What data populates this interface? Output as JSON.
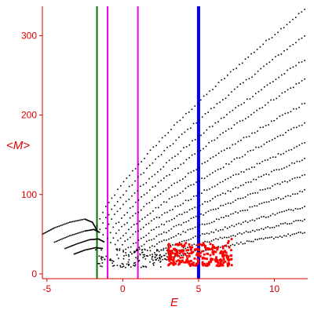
{
  "chart_data": {
    "type": "scatter",
    "xlabel": "E",
    "ylabel": "<M>",
    "xlim": [
      -5.3,
      12.2
    ],
    "ylim": [
      -6,
      337
    ],
    "x_ticks": [
      -5,
      0,
      5,
      10
    ],
    "y_ticks": [
      0,
      100,
      200,
      300
    ],
    "x_tick_labels": [
      "-5",
      "0",
      "5",
      "10"
    ],
    "y_tick_labels": [
      "0",
      "100",
      "200",
      "300"
    ],
    "grid": false,
    "colors": {
      "axes": "#dd0000",
      "points": "#000000",
      "cluster": "#ff0000",
      "line_green": "#007700",
      "line_magenta": "#ee00ee",
      "line_blue": "#0000ff"
    },
    "vertical_lines": [
      {
        "x": -1.7,
        "color": "#007700",
        "width": 2
      },
      {
        "x": -1.0,
        "color": "#ee00ee",
        "width": 2
      },
      {
        "x": 1.0,
        "color": "#ee00ee",
        "width": 2
      },
      {
        "x": 5.0,
        "color": "#0000ff",
        "width": 4
      }
    ],
    "fan_branches": [
      {
        "x_start": -1.7,
        "y_start": 60,
        "x_end": 12.0,
        "y_end": 333
      },
      {
        "x_start": -1.5,
        "y_start": 55,
        "x_end": 12.0,
        "y_end": 300
      },
      {
        "x_start": -1.3,
        "y_start": 50,
        "x_end": 12.0,
        "y_end": 270
      },
      {
        "x_start": -1.0,
        "y_start": 45,
        "x_end": 12.0,
        "y_end": 245
      },
      {
        "x_start": -0.8,
        "y_start": 40,
        "x_end": 12.0,
        "y_end": 215
      },
      {
        "x_start": -0.5,
        "y_start": 36,
        "x_end": 12.0,
        "y_end": 190
      },
      {
        "x_start": -0.2,
        "y_start": 32,
        "x_end": 12.0,
        "y_end": 165
      },
      {
        "x_start": 0.2,
        "y_start": 28,
        "x_end": 12.0,
        "y_end": 145
      },
      {
        "x_start": 0.6,
        "y_start": 25,
        "x_end": 12.0,
        "y_end": 125
      },
      {
        "x_start": 1.0,
        "y_start": 22,
        "x_end": 12.0,
        "y_end": 105
      },
      {
        "x_start": 1.5,
        "y_start": 20,
        "x_end": 12.0,
        "y_end": 85
      },
      {
        "x_start": 2.0,
        "y_start": 18,
        "x_end": 12.0,
        "y_end": 68
      },
      {
        "x_start": 2.5,
        "y_start": 16,
        "x_end": 12.0,
        "y_end": 52
      }
    ],
    "left_curves": [
      {
        "points": [
          [
            -5.3,
            50
          ],
          [
            -4.5,
            58
          ],
          [
            -3.5,
            65
          ],
          [
            -2.5,
            69
          ],
          [
            -2.0,
            65
          ],
          [
            -1.7,
            55
          ]
        ]
      },
      {
        "points": [
          [
            -4.5,
            40
          ],
          [
            -3.5,
            48
          ],
          [
            -2.5,
            54
          ],
          [
            -1.9,
            56
          ],
          [
            -1.5,
            52
          ]
        ]
      },
      {
        "points": [
          [
            -3.8,
            32
          ],
          [
            -3.0,
            38
          ],
          [
            -2.2,
            43
          ],
          [
            -1.6,
            44
          ],
          [
            -1.2,
            40
          ]
        ]
      },
      {
        "points": [
          [
            -3.2,
            25
          ],
          [
            -2.5,
            30
          ],
          [
            -1.8,
            33
          ],
          [
            -1.3,
            32
          ]
        ]
      }
    ],
    "bottom_cloud": {
      "x_range": [
        -1.8,
        3.2
      ],
      "y_range": [
        8,
        32
      ],
      "count": 120
    },
    "cluster": {
      "x_range": [
        3.0,
        7.2
      ],
      "y_range": [
        10,
        50
      ],
      "count": 260
    }
  }
}
